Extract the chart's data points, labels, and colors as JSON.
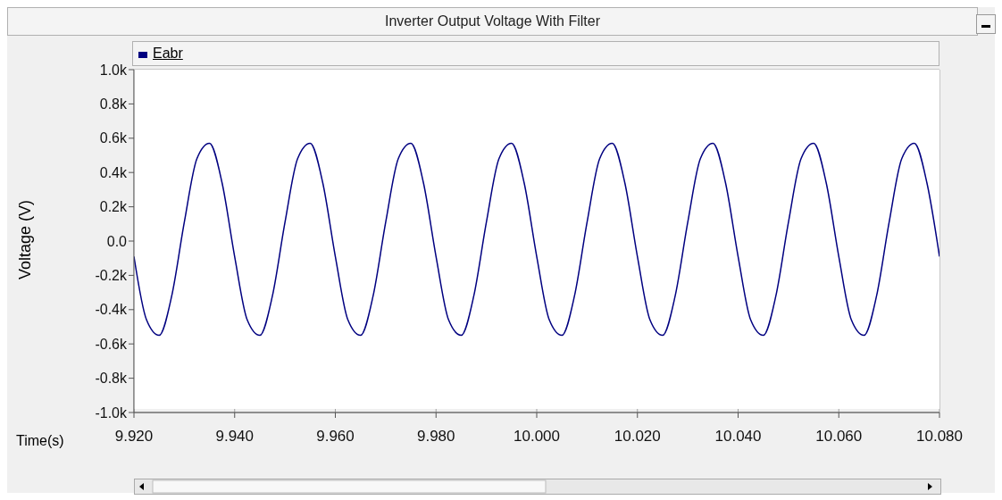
{
  "chart_data": {
    "type": "line",
    "title": "Inverter Output Voltage With Filter",
    "xlabel": "Time(s)",
    "ylabel": "Voltage (V)",
    "x": [
      9.92,
      9.9225,
      9.925,
      9.9275,
      9.93,
      9.9325,
      9.935,
      9.9375,
      9.94,
      9.9425,
      9.945,
      9.9475,
      9.95,
      9.9525,
      9.955,
      9.9575,
      9.96,
      9.9625,
      9.965,
      9.9675,
      9.97,
      9.9725,
      9.975,
      9.9775,
      9.98,
      9.9825,
      9.985,
      9.9875,
      9.99,
      9.9925,
      9.995,
      9.9975,
      10.0,
      10.0025,
      10.005,
      10.0075,
      10.01,
      10.0125,
      10.015,
      10.0175,
      10.02,
      10.0225,
      10.025,
      10.0275,
      10.03,
      10.0325,
      10.035,
      10.0375,
      10.04,
      10.0425,
      10.045,
      10.0475,
      10.05,
      10.0525,
      10.055,
      10.0575,
      10.06,
      10.0625,
      10.065,
      10.0675,
      10.07,
      10.0725,
      10.075,
      10.0775,
      10.08
    ],
    "series": [
      {
        "name": "Eabr",
        "color": "#000080",
        "values": [
          -90,
          -460,
          -550,
          -320,
          110,
          480,
          570,
          340,
          -90,
          -460,
          -550,
          -320,
          110,
          480,
          570,
          340,
          -90,
          -460,
          -550,
          -320,
          110,
          480,
          570,
          340,
          -90,
          -460,
          -550,
          -320,
          110,
          480,
          570,
          340,
          -90,
          -460,
          -550,
          -320,
          110,
          480,
          570,
          340,
          -90,
          -460,
          -550,
          -320,
          110,
          480,
          570,
          340,
          -90,
          -460,
          -550,
          -320,
          110,
          480,
          570,
          340,
          -90,
          -460,
          -550,
          -320,
          110,
          480,
          570,
          340,
          -90
        ]
      }
    ],
    "xlim": [
      9.92,
      10.08
    ],
    "xticks": [
      {
        "value": 9.92,
        "label": "9.920"
      },
      {
        "value": 9.94,
        "label": "9.940"
      },
      {
        "value": 9.96,
        "label": "9.960"
      },
      {
        "value": 9.98,
        "label": "9.980"
      },
      {
        "value": 10.0,
        "label": "10.000"
      },
      {
        "value": 10.02,
        "label": "10.020"
      },
      {
        "value": 10.04,
        "label": "10.040"
      },
      {
        "value": 10.06,
        "label": "10.060"
      },
      {
        "value": 10.08,
        "label": "10.080"
      }
    ],
    "ylim": [
      -1000,
      1000
    ],
    "yticks": [
      {
        "value": -1000,
        "label": "-1.0k"
      },
      {
        "value": -800,
        "label": "-0.8k"
      },
      {
        "value": -600,
        "label": "-0.6k"
      },
      {
        "value": -400,
        "label": "-0.4k"
      },
      {
        "value": -200,
        "label": "-0.2k"
      },
      {
        "value": 0,
        "label": "0.0"
      },
      {
        "value": 200,
        "label": "0.2k"
      },
      {
        "value": 400,
        "label": "0.4k"
      },
      {
        "value": 600,
        "label": "0.6k"
      },
      {
        "value": 800,
        "label": "0.8k"
      },
      {
        "value": 1000,
        "label": "1.0k"
      }
    ],
    "grid": true,
    "legend": "top left",
    "marker": "none",
    "line_style": "solid"
  }
}
